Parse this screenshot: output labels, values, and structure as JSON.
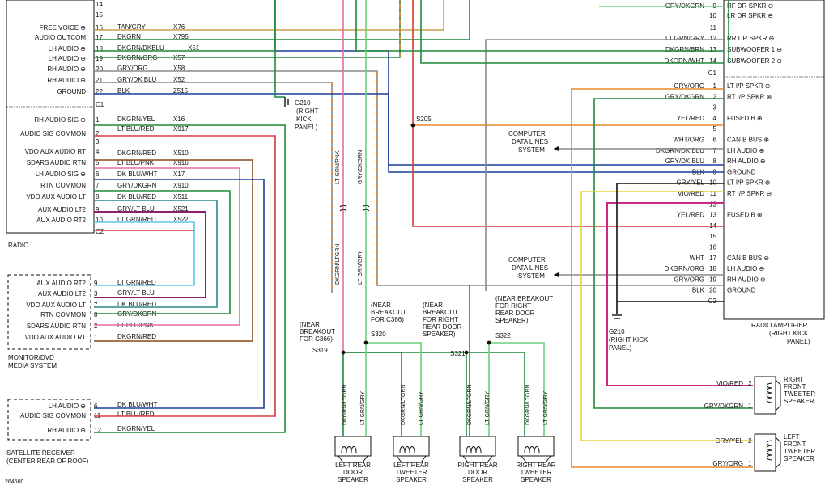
{
  "radio": {
    "label": "RADIO",
    "pins": [
      {
        "pin": "14",
        "label": ""
      },
      {
        "pin": "15",
        "label": ""
      },
      {
        "pin": "16",
        "label": "FREE VOICE ⊖"
      },
      {
        "pin": "17",
        "label": "AUDIO OUTCOM"
      },
      {
        "pin": "18",
        "label": "LH AUDIO ⊕"
      },
      {
        "pin": "19",
        "label": "LH AUDIO ⊖"
      },
      {
        "pin": "20",
        "label": "RH AUDIO ⊖"
      },
      {
        "pin": "21",
        "label": "RH AUDIO ⊕"
      },
      {
        "pin": "22",
        "label": "GROUND"
      },
      {
        "pin": "C1",
        "label": ""
      },
      {
        "pin": "1",
        "label": "RH AUDIO SIG ⊕"
      },
      {
        "pin": "2",
        "label": "AUDIO SIG COMMON"
      },
      {
        "pin": "3",
        "label": ""
      },
      {
        "pin": "4",
        "label": "VDO AUX AUDIO RT"
      },
      {
        "pin": "5",
        "label": "SDARS AUDIO RTN"
      },
      {
        "pin": "6",
        "label": "LH AUDIO SIG ⊕"
      },
      {
        "pin": "7",
        "label": "RTN COMMON"
      },
      {
        "pin": "8",
        "label": "VDO AUX AUDIO LT"
      },
      {
        "pin": "9",
        "label": "AUX AUDIO LT2"
      },
      {
        "pin": "10",
        "label": "AUX AUDIO RT2"
      },
      {
        "pin": "C2",
        "label": ""
      }
    ],
    "wires": [
      {
        "color": "TAN/GRY",
        "circuit": "X76"
      },
      {
        "color": "DKGRN",
        "circuit": "X795"
      },
      {
        "color": "DKGRN/DKBLU",
        "circuit": "X51"
      },
      {
        "color": "DKGRN/ORG",
        "circuit": "X57"
      },
      {
        "color": "GRY/ORG",
        "circuit": "X58"
      },
      {
        "color": "GRY/DK BLU",
        "circuit": "X52"
      },
      {
        "color": "BLK",
        "circuit": "Z515"
      },
      {
        "color": "DKGRN/YEL",
        "circuit": "X16"
      },
      {
        "color": "LT BLU/RED",
        "circuit": "X917"
      },
      {
        "color": "DKGRN/RED",
        "circuit": "X510"
      },
      {
        "color": "LT BLU/PNK",
        "circuit": "X916"
      },
      {
        "color": "DK BLU/WHT",
        "circuit": "X17"
      },
      {
        "color": "GRY/DKGRN",
        "circuit": "X910"
      },
      {
        "color": "DK BLU/RED",
        "circuit": "X511"
      },
      {
        "color": "GRY/LT BLU",
        "circuit": "X521"
      },
      {
        "color": "LT GRN/RED",
        "circuit": "X522"
      }
    ]
  },
  "ground_left": {
    "label": "G210",
    "note": [
      "(RIGHT",
      "KICK",
      "PANEL)"
    ]
  },
  "monitor": {
    "label": [
      "MONITOR/DVD",
      "MEDIA SYSTEM"
    ],
    "pins": [
      {
        "pin": "9",
        "label": "AUX AUDIO RT2",
        "wire": "LT GRN/RED"
      },
      {
        "pin": "3",
        "label": "AUX AUDIO LT2",
        "wire": "GRY/LT BLU"
      },
      {
        "pin": "7",
        "label": "VDO AUX AUDIO LT",
        "wire": "DK BLU/RED"
      },
      {
        "pin": "8",
        "label": "RTN COMMON",
        "wire": "GRY/DKGRN"
      },
      {
        "pin": "2",
        "label": "SDARS AUDIO RTN",
        "wire": "LT BLU/PNK"
      },
      {
        "pin": "1",
        "label": "VDO AUX AUDIO RT",
        "wire": "DKGRN/RED"
      }
    ]
  },
  "satellite": {
    "label": [
      "SATELLITE RECEIVER",
      "(CENTER REAR OF ROOF)"
    ],
    "pins": [
      {
        "pin": "6",
        "label": "LH AUDIO ⊕",
        "wire": "DK BLU/WHT"
      },
      {
        "pin": "11",
        "label": "AUDIO SIG COMMON",
        "wire": "LT BLU/RED"
      },
      {
        "pin": "12",
        "label": "RH AUDIO ⊕",
        "wire": "DKGRN/YEL"
      }
    ]
  },
  "doc_id": "264500",
  "amp": {
    "label": [
      "RADIO AMPLIFIER",
      "(RIGHT KICK",
      "PANEL)"
    ],
    "top_right_labels": [
      {
        "pin": "9",
        "label": "RF DR SPKR ⊖",
        "wire": "GRY/DKGRN"
      },
      {
        "pin": "10",
        "label": "LR DR SPKR ⊖",
        "wire": ""
      },
      {
        "pin": "11",
        "label": "",
        "wire": ""
      },
      {
        "pin": "12",
        "label": "RR DR SPKR ⊖",
        "wire": "LT GRN/GRY"
      },
      {
        "pin": "13",
        "label": "SUBWOOFER 1 ⊖",
        "wire": "DKGRN/BRN"
      },
      {
        "pin": "14",
        "label": "SUBWOOFER 2 ⊖",
        "wire": "DKGRN/WHT"
      },
      {
        "pin": "C1",
        "label": "",
        "wire": ""
      }
    ],
    "pins": [
      {
        "pin": "1",
        "label": "LT I/P SPKR ⊖",
        "wire": "GRY/ORG"
      },
      {
        "pin": "2",
        "label": "RT I/P SPKR ⊕",
        "wire": "GRY/DKGRN"
      },
      {
        "pin": "3",
        "label": "",
        "wire": ""
      },
      {
        "pin": "4",
        "label": "FUSED B ⊕",
        "wire": "YEL/RED"
      },
      {
        "pin": "5",
        "label": "",
        "wire": ""
      },
      {
        "pin": "6",
        "label": "CAN B BUS ⊕",
        "wire": "WHT/ORG"
      },
      {
        "pin": "7",
        "label": "LH AUDIO ⊕",
        "wire": "DKGRN/DK BLU"
      },
      {
        "pin": "8",
        "label": "RH AUDIO ⊕",
        "wire": "GRY/DK BLU"
      },
      {
        "pin": "9",
        "label": "GROUND",
        "wire": "BLK"
      },
      {
        "pin": "10",
        "label": "LT I/P SPKR ⊕",
        "wire": "GRY/YEL"
      },
      {
        "pin": "11",
        "label": "RT I/P SPKR ⊖",
        "wire": "VIO/RED"
      },
      {
        "pin": "12",
        "label": "",
        "wire": ""
      },
      {
        "pin": "13",
        "label": "FUSED B ⊕",
        "wire": "YEL/RED"
      },
      {
        "pin": "14",
        "label": "",
        "wire": ""
      },
      {
        "pin": "15",
        "label": "",
        "wire": ""
      },
      {
        "pin": "16",
        "label": "",
        "wire": ""
      },
      {
        "pin": "17",
        "label": "CAN B BUS ⊖",
        "wire": "WHT"
      },
      {
        "pin": "18",
        "label": "LH AUDIO ⊖",
        "wire": "DKGRN/ORG"
      },
      {
        "pin": "19",
        "label": "RH AUDIO ⊖",
        "wire": "GRY/ORG"
      },
      {
        "pin": "20",
        "label": "GROUND",
        "wire": "BLK"
      },
      {
        "pin": "C2",
        "label": "",
        "wire": ""
      }
    ]
  },
  "computer_data_1": [
    "COMPUTER",
    "DATA LINES",
    "SYSTEM"
  ],
  "computer_data_2": [
    "COMPUTER",
    "DATA LINES",
    "SYSTEM"
  ],
  "splice_s205": "S205",
  "ground_right": {
    "label": "G210",
    "note": [
      "(RIGHT KICK",
      "PANEL)"
    ]
  },
  "vertical_labels": {
    "ltgrn_pnk": "LT GRN/PNK",
    "gry_dkgrn": "GRY/DKGRN",
    "dkgrn_ltgrn": "DKGRN/LTGRN",
    "ltgrn_gry": "LT GRN/GRY"
  },
  "splices": [
    {
      "id": "S319",
      "note": [
        "(NEAR",
        "BREAKOUT",
        "FOR C366)"
      ]
    },
    {
      "id": "S320",
      "note": [
        "(NEAR",
        "BREAKOUT",
        "FOR C366)"
      ]
    },
    {
      "id": "S321",
      "note": [
        "(NEAR",
        "BREAKOUT",
        "FOR RIGHT",
        "REAR DOOR",
        "SPEAKER)"
      ]
    },
    {
      "id": "S322",
      "note": [
        "(NEAR BREAKOUT",
        "FOR RIGHT",
        "REAR DOOR",
        "SPEAKER)"
      ]
    }
  ],
  "speakers_bottom": [
    {
      "name": [
        "LEFT REAR",
        "DOOR",
        "SPEAKER"
      ],
      "wire_left": "DKGRN/LTGRN",
      "wire_right": "LT GRN/GRY"
    },
    {
      "name": [
        "LEFT REAR",
        "TWEETER",
        "SPEAKER"
      ],
      "wire_left": "DKGRN/LTGRN",
      "wire_right": "LT GRN/GRY"
    },
    {
      "name": [
        "RIGHT REAR",
        "DOOR",
        "SPEAKER"
      ],
      "wire_left": "DKGRN/LTGRN",
      "wire_right": "LT GRN/GRY"
    },
    {
      "name": [
        "RIGHT REAR",
        "TWEETER",
        "SPEAKER"
      ],
      "wire_left": "DKGRN/LTGRN",
      "wire_right": "LT GRN/GRY"
    }
  ],
  "speakers_right": [
    {
      "name": [
        "RIGHT",
        "FRONT",
        "TWEETER",
        "SPEAKER"
      ],
      "pins": [
        {
          "pin": "2",
          "wire": "VIO/RED"
        },
        {
          "pin": "1",
          "wire": "GRY/DKGRN"
        }
      ]
    },
    {
      "name": [
        "LEFT",
        "FRONT",
        "TWEETER",
        "SPEAKER"
      ],
      "pins": [
        {
          "pin": "2",
          "wire": "GRY/YEL"
        },
        {
          "pin": "1",
          "wire": "GRY/ORG"
        }
      ]
    }
  ],
  "colors": {
    "tan": "#c8a050",
    "dkgrn": "#1f8a3a",
    "dkblue": "#1f3e9a",
    "gray": "#8a8a8a",
    "orange": "#e8872a",
    "black": "#111111",
    "ltblue": "#5cc8e8",
    "red": "#d23a3a",
    "pink": "#e86aa8",
    "purple": "#8a1f6a",
    "yellow": "#e8d23a",
    "violet": "#c8288a",
    "teal": "#2a8a8a",
    "ltgreen": "#6ad27a"
  }
}
